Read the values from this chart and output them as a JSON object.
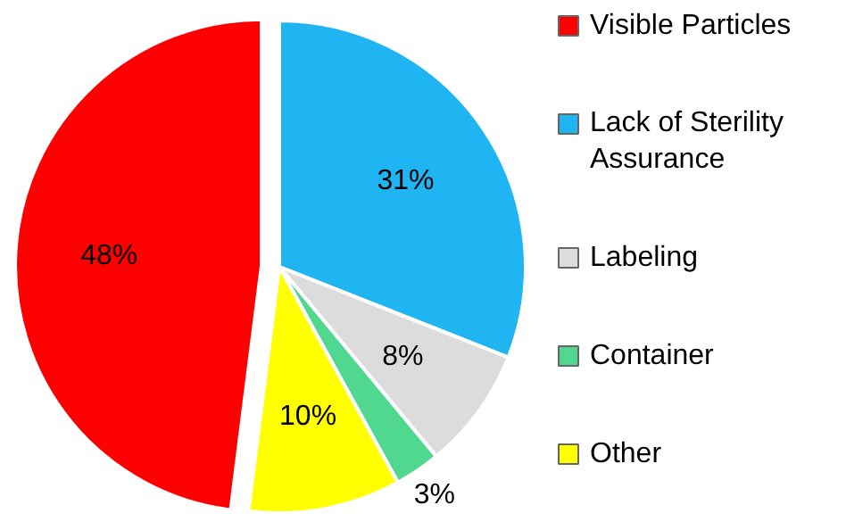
{
  "chart_data": {
    "type": "pie",
    "categories": [
      "Visible Particles",
      "Lack of Sterility Assurance",
      "Labeling",
      "Container",
      "Other"
    ],
    "values": [
      48,
      31,
      8,
      3,
      10
    ],
    "colors": [
      "#ff0000",
      "#1fb4f2",
      "#dcdcdc",
      "#50d890",
      "#ffff00"
    ],
    "value_labels": [
      "48%",
      "31%",
      "8%",
      "3%",
      "10%"
    ],
    "legend": "right"
  }
}
